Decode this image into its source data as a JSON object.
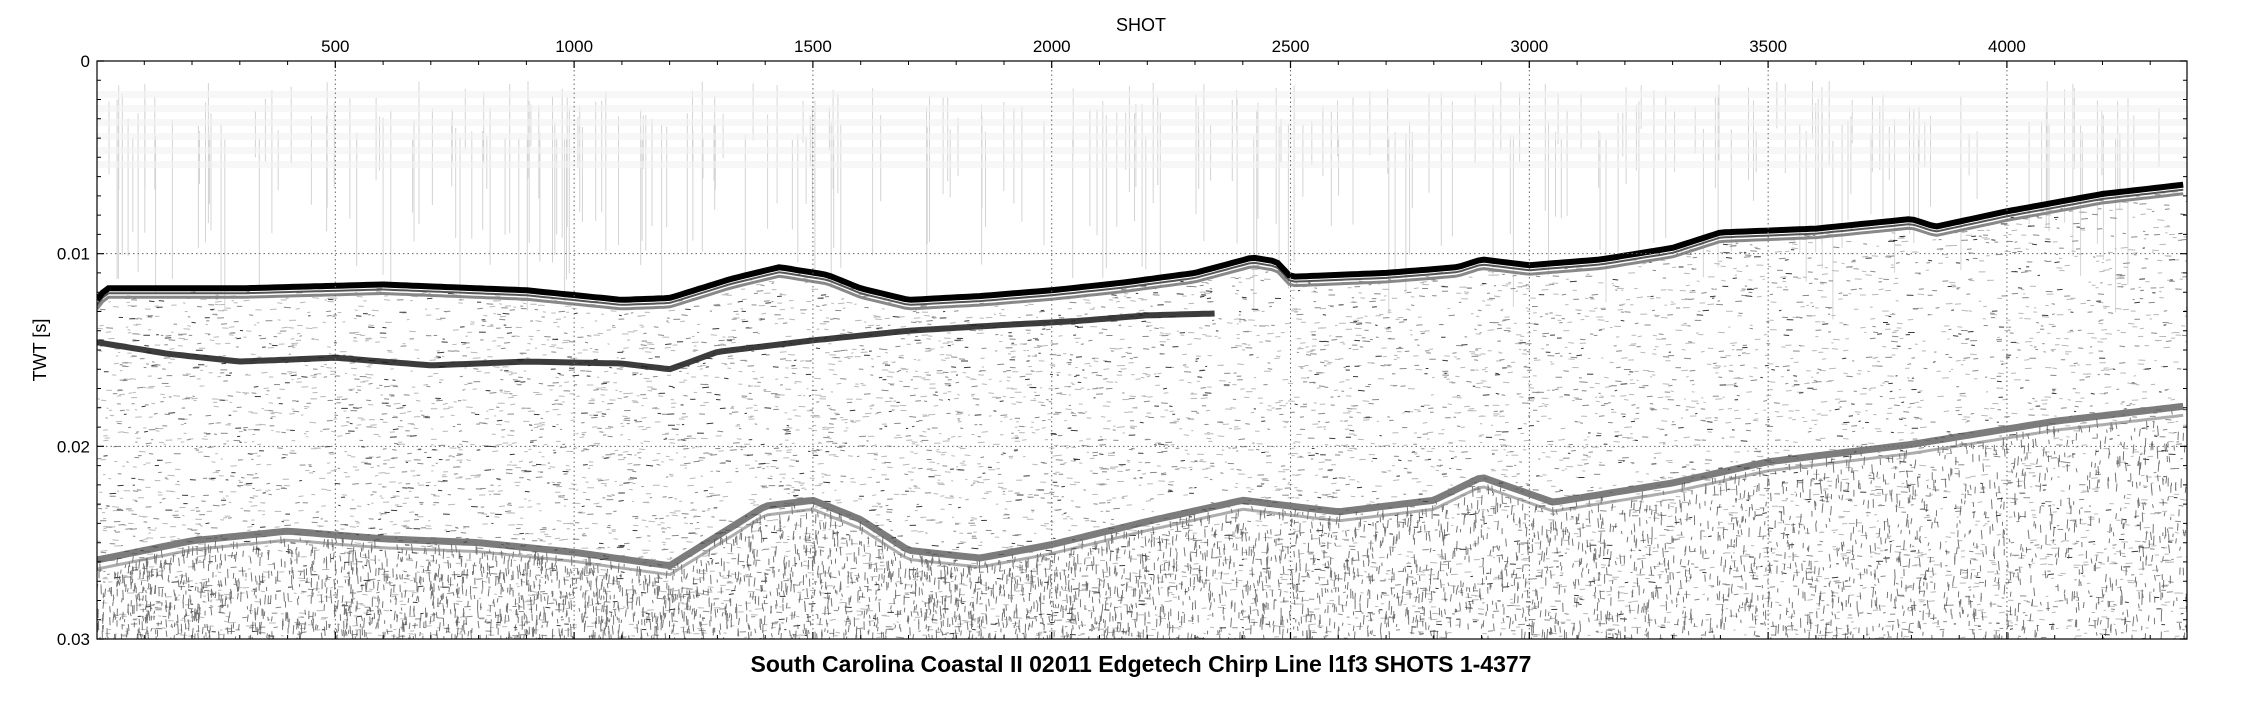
{
  "chart_data": {
    "type": "heatmap",
    "title": "South Carolina Coastal II 02011 Edgetech Chirp Line l1f3 SHOTS 1-4377",
    "xlabel": "SHOT",
    "ylabel": "TWT [s]",
    "xlim": [
      1,
      4377
    ],
    "ylim": [
      0,
      0.03
    ],
    "y_inverted": true,
    "x_axis_position": "top",
    "grid": true,
    "grid_style": "dotted",
    "colormap": "grayscale",
    "x_ticks": [
      500,
      1000,
      1500,
      2000,
      2500,
      3000,
      3500,
      4000
    ],
    "x_tick_labels": [
      "500",
      "1000",
      "1500",
      "2000",
      "2500",
      "3000",
      "3500",
      "4000"
    ],
    "y_ticks": [
      0,
      0.01,
      0.02,
      0.03
    ],
    "y_tick_labels": [
      "0",
      "0.01",
      "0.02",
      "0.03"
    ],
    "seafloor_reflector": {
      "shot": [
        1,
        20,
        300,
        600,
        900,
        1100,
        1200,
        1330,
        1430,
        1530,
        1600,
        1700,
        1850,
        2000,
        2150,
        2300,
        2420,
        2470,
        2500,
        2700,
        2850,
        2900,
        3000,
        3150,
        3300,
        3400,
        3600,
        3800,
        3850,
        4000,
        4200,
        4377
      ],
      "twt": [
        0.0124,
        0.0118,
        0.0118,
        0.0116,
        0.0119,
        0.0124,
        0.0123,
        0.0113,
        0.0107,
        0.0111,
        0.0118,
        0.0124,
        0.0122,
        0.0119,
        0.0115,
        0.011,
        0.0102,
        0.0104,
        0.0112,
        0.011,
        0.0107,
        0.0103,
        0.0106,
        0.0103,
        0.0097,
        0.0089,
        0.0087,
        0.0082,
        0.0086,
        0.0078,
        0.0069,
        0.0064
      ]
    },
    "deep_reflector": {
      "shot": [
        1,
        200,
        400,
        600,
        800,
        1000,
        1200,
        1400,
        1500,
        1600,
        1700,
        1850,
        2000,
        2200,
        2400,
        2600,
        2800,
        2900,
        3050,
        3300,
        3500,
        3800,
        4100,
        4377
      ],
      "twt": [
        0.0259,
        0.0249,
        0.0244,
        0.0248,
        0.025,
        0.0255,
        0.0262,
        0.0231,
        0.0228,
        0.0238,
        0.0254,
        0.0258,
        0.0251,
        0.0239,
        0.0228,
        0.0234,
        0.0228,
        0.0216,
        0.0229,
        0.0219,
        0.0208,
        0.0199,
        0.0187,
        0.0179
      ]
    },
    "buried_reflector": {
      "shot": [
        1,
        150,
        300,
        500,
        700,
        900,
        1100,
        1200,
        1300,
        1500,
        1700,
        1900,
        2050,
        2200,
        2350
      ],
      "twt": [
        0.0146,
        0.0152,
        0.0156,
        0.0154,
        0.0158,
        0.0156,
        0.0157,
        0.016,
        0.0151,
        0.0145,
        0.014,
        0.0137,
        0.0135,
        0.0132,
        0.0131
      ]
    }
  }
}
